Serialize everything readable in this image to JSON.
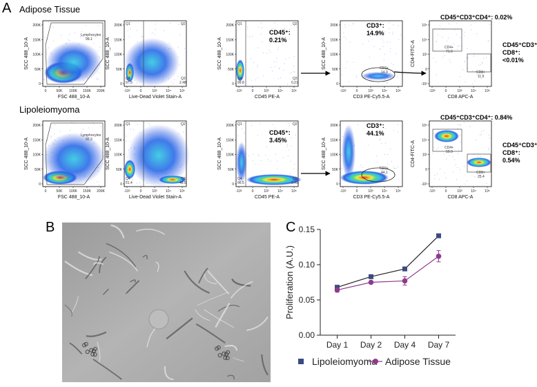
{
  "figure_labels": {
    "a": "A",
    "b": "B",
    "c": "C"
  },
  "flow": {
    "linear_ticks": [
      "0",
      "50K",
      "100K",
      "150K",
      "200K"
    ],
    "log_ticks": [
      "-10³",
      "0",
      "10³",
      "10⁴",
      "10⁵"
    ],
    "quadrants": [
      "Q1",
      "Q2",
      "Q3",
      "Q4"
    ],
    "rows": [
      {
        "title": "Adipose Tissue",
        "plots": [
          {
            "x_label": "FSC 488_10-A",
            "y_label": "SCC 488_10-A",
            "gate_name": "Lymphocytes",
            "gate_value": "99.1"
          },
          {
            "x_label": "Live-Dead Violet Stain-A",
            "y_label": "SCC 488_10-A",
            "q4": "97.5",
            "q3": "2.48"
          },
          {
            "x_label": "CD45 PE-A",
            "y_label": "SCC 488_10-A",
            "q4": "99.8",
            "q3": "0.21",
            "annotation": [
              "CD45⁺:",
              "0.21%"
            ]
          },
          {
            "x_label": "CD3 PE-Cy5.5-A",
            "y_label": "SCC 488_10-A",
            "gate_name": "CD3+",
            "gate_value": "14.9",
            "annotation": [
              "CD3⁺:",
              "14.9%"
            ]
          },
          {
            "x_label": "CD8 APC-A",
            "y_label": "CD4-FITC-A",
            "gate_names": [
              "CD4+",
              "CD8+"
            ],
            "gate_values": [
              "71.6",
              "11.5"
            ],
            "annotation": [
              "CD45⁺CD3⁺CD4⁺: 0.02%"
            ],
            "side_annotation": [
              "CD45⁺CD3⁺",
              "CD8⁺:",
              "<0.01%"
            ]
          }
        ]
      },
      {
        "title": "Lipoleiomyoma",
        "plots": [
          {
            "x_label": "FSC 488_10-A",
            "y_label": "SCC 488_10-A",
            "gate_name": "Lymphocytes",
            "gate_value": "92.2"
          },
          {
            "x_label": "Live-Dead Violet Stain-A",
            "y_label": "SCC 488_10-A",
            "q4": "51.4",
            "q3": "48.6"
          },
          {
            "x_label": "CD45 PE-A",
            "y_label": "SCC 488_10-A",
            "q4": "96.5",
            "q3": "3.45",
            "annotation": [
              "CD45⁺:",
              "3.45%"
            ]
          },
          {
            "x_label": "CD3 PE-Cy5.5-A",
            "y_label": "SCC 488_10-A",
            "gate_name": "CD3+",
            "gate_value": "44.1",
            "annotation": [
              "CD3⁺:",
              "44.1%"
            ]
          },
          {
            "x_label": "CD8 APC-A",
            "y_label": "CD4-FITC-A",
            "gate_names": [
              "CD4+",
              "CD8+"
            ],
            "gate_values": [
              "59.9",
              "25.4"
            ],
            "annotation": [
              "CD45⁺CD3⁺CD4⁺: 0.84%"
            ],
            "side_annotation": [
              "CD45⁺CD3⁺",
              "CD8⁺:",
              "0.54%"
            ]
          }
        ]
      }
    ]
  },
  "chart_data": {
    "type": "line",
    "y_label": "Proliferation (A.U.)",
    "categories": [
      "Day 1",
      "Day 2",
      "Day 4",
      "Day 7"
    ],
    "series": [
      {
        "name": "Lipoleiomyoma",
        "color": "#3b4a82",
        "marker": "square",
        "values": [
          0.068,
          0.083,
          0.094,
          0.141
        ],
        "errors": [
          0.002,
          0.002,
          0.002,
          0.002
        ]
      },
      {
        "name": "Adipose Tissue",
        "color": "#8e3a8e",
        "marker": "circle",
        "values": [
          0.064,
          0.075,
          0.077,
          0.112
        ],
        "errors": [
          0.003,
          0.002,
          0.006,
          0.008
        ]
      }
    ],
    "ylim": [
      0,
      0.15
    ],
    "yticks": [
      {
        "value": 0,
        "label": "0.00"
      },
      {
        "value": 0.05,
        "label": "0.05"
      },
      {
        "value": 0.1,
        "label": "0.10"
      },
      {
        "value": 0.15,
        "label": "0.15"
      }
    ]
  }
}
